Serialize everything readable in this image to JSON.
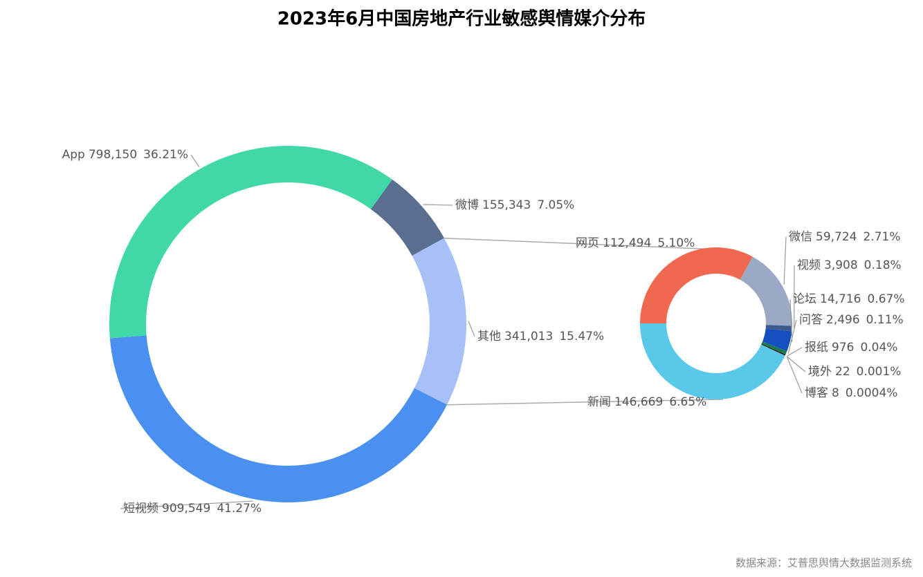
{
  "title": "2023年6月中国房地产行业敏感舆情媒介分布",
  "source": "数据来源：艾普思舆情大数据监测系统",
  "chart_data": [
    {
      "type": "donut",
      "categories": [
        "微博",
        "其他",
        "短视频",
        "App"
      ],
      "values": [
        155343,
        341013,
        909549,
        798150
      ],
      "value_labels": [
        "155,343",
        "341,013",
        "909,549",
        "798,150"
      ],
      "percents": [
        7.05,
        15.47,
        41.27,
        36.21
      ],
      "percent_labels": [
        "7.05%",
        "15.47%",
        "41.27%",
        "36.21%"
      ],
      "colors": [
        "#5a6f8f",
        "#a8c0f8",
        "#4a90f0",
        "#40d8a8"
      ]
    },
    {
      "type": "donut",
      "categories": [
        "网页",
        "微信",
        "视频",
        "论坛",
        "问答",
        "报纸",
        "境外",
        "博客",
        "新闻"
      ],
      "values": [
        112494,
        59724,
        3908,
        14716,
        2496,
        976,
        22,
        8,
        146669
      ],
      "value_labels": [
        "112,494",
        "59,724",
        "3,908",
        "14,716",
        "2,496",
        "976",
        "22",
        "8",
        "146,669"
      ],
      "percents": [
        5.1,
        2.71,
        0.18,
        0.67,
        0.11,
        0.04,
        0.001,
        0.0004,
        6.65
      ],
      "percent_labels": [
        "5.10%",
        "2.71%",
        "0.18%",
        "0.67%",
        "0.11%",
        "0.04%",
        "0.001%",
        "0.0004%",
        "6.65%"
      ],
      "colors": [
        "#f06850",
        "#9aaac4",
        "#3c5a8a",
        "#1450c0",
        "#1a7a50",
        "#222222",
        "#f0a030",
        "#888888",
        "#5ac8e8"
      ]
    }
  ]
}
